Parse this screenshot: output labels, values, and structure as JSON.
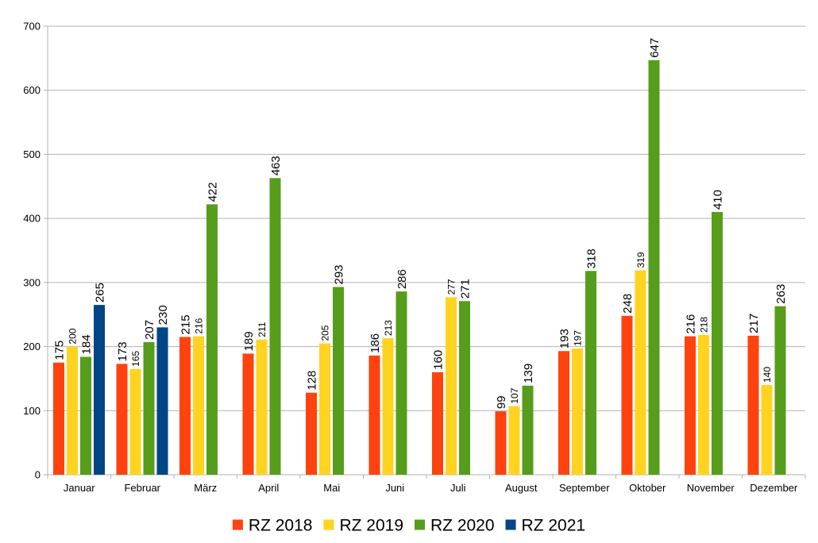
{
  "chart_data": {
    "type": "bar",
    "title": "",
    "xlabel": "",
    "ylabel": "",
    "ylim": [
      0,
      700
    ],
    "yticks": [
      0,
      100,
      200,
      300,
      400,
      500,
      600,
      700
    ],
    "grid": "horizontal",
    "legend_position": "bottom",
    "categories": [
      "Januar",
      "Februar",
      "März",
      "April",
      "Mai",
      "Juni",
      "Juli",
      "August",
      "September",
      "Oktober",
      "November",
      "Dezember"
    ],
    "series": [
      {
        "name": "RZ 2018",
        "color": "#ff420e",
        "values": [
          175,
          173,
          215,
          189,
          128,
          186,
          160,
          99,
          193,
          248,
          216,
          217
        ]
      },
      {
        "name": "RZ 2019",
        "color": "#ffd320",
        "values": [
          200,
          165,
          216,
          211,
          205,
          213,
          277,
          107,
          197,
          319,
          218,
          140
        ]
      },
      {
        "name": "RZ 2020",
        "color": "#579d1c",
        "values": [
          184,
          207,
          422,
          463,
          293,
          286,
          271,
          139,
          318,
          647,
          410,
          263
        ]
      },
      {
        "name": "RZ 2021",
        "color": "#004586",
        "values": [
          265,
          230,
          null,
          null,
          null,
          null,
          null,
          null,
          null,
          null,
          null,
          null
        ]
      }
    ]
  }
}
